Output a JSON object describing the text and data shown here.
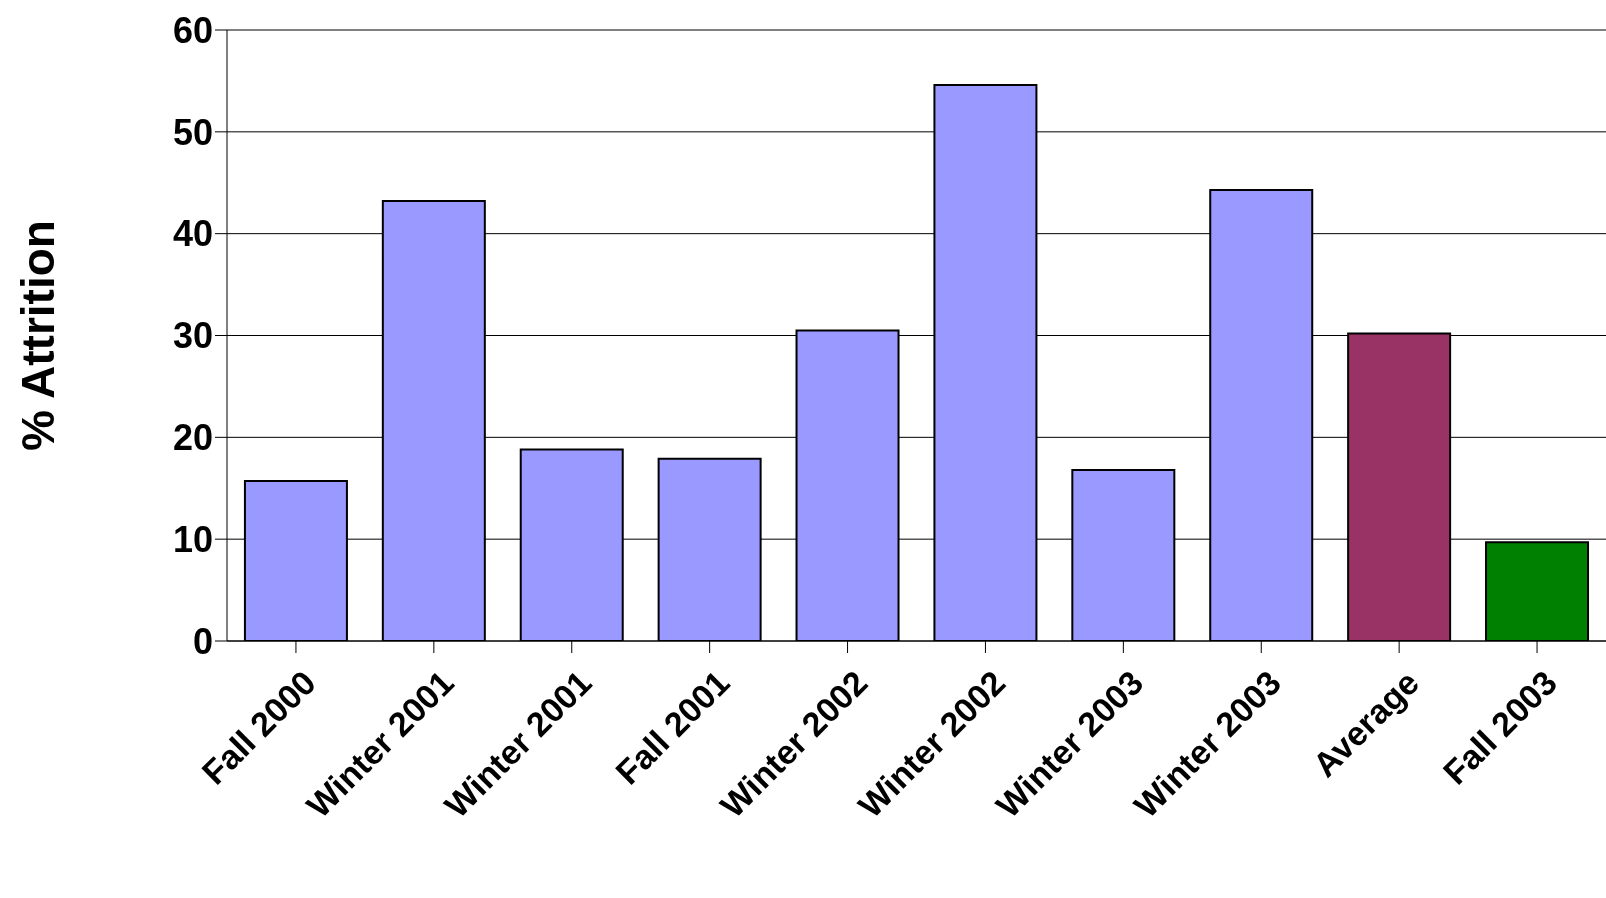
{
  "chart_data": {
    "type": "bar",
    "ylabel": "% Attrition",
    "categories": [
      "Fall 2000",
      "Winter 2001",
      "Winter 2001",
      "Fall 2001",
      "Winter 2002",
      "Winter 2002",
      "Winter 2003",
      "Winter 2003",
      "Average",
      "Fall 2003"
    ],
    "values": [
      15.7,
      43.2,
      18.8,
      17.9,
      30.5,
      54.6,
      16.8,
      44.3,
      30.2,
      9.7
    ],
    "colors": [
      "#9999ff",
      "#9999ff",
      "#9999ff",
      "#9999ff",
      "#9999ff",
      "#9999ff",
      "#9999ff",
      "#9999ff",
      "#993366",
      "#008000"
    ],
    "ylim": [
      0,
      60
    ],
    "yticks": [
      0,
      10,
      20,
      30,
      40,
      50,
      60
    ],
    "grid": "y"
  }
}
